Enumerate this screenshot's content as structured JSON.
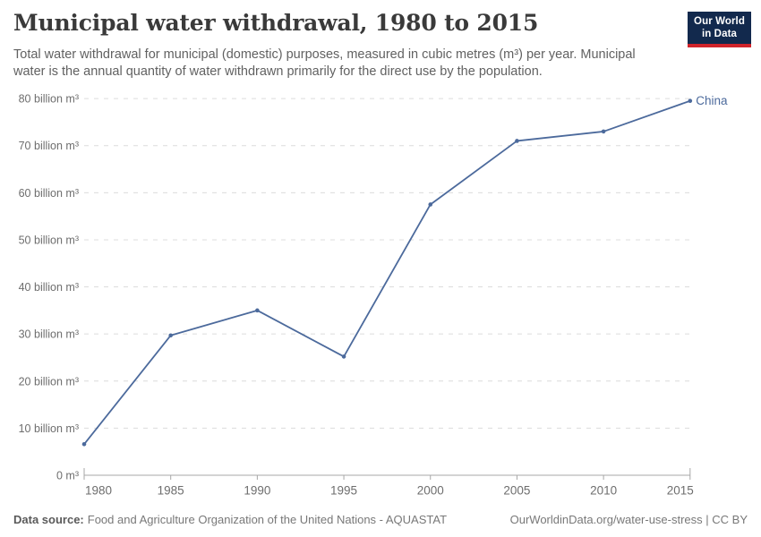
{
  "header": {
    "title": "Municipal water withdrawal, 1980 to 2015",
    "subtitle": "Total water withdrawal for municipal (domestic) purposes, measured in cubic metres (m³) per year. Municipal water is the annual quantity of water withdrawn primarily for the direct use by the population.",
    "logo": {
      "line1": "Our World",
      "line2": "in Data"
    }
  },
  "chart_data": {
    "type": "line",
    "title": "Municipal water withdrawal, 1980 to 2015",
    "unit": "billion m³",
    "x": [
      1980,
      1985,
      1990,
      1995,
      2000,
      2005,
      2010,
      2015
    ],
    "x_tick_labels": [
      "1980",
      "1985",
      "1990",
      "1995",
      "2000",
      "2005",
      "2010",
      "2015"
    ],
    "series": [
      {
        "name": "China",
        "values": [
          6.6,
          29.7,
          35.0,
          25.2,
          57.5,
          71.0,
          73.0,
          79.5
        ],
        "color": "#4c6a9c"
      }
    ],
    "xlim": [
      1980,
      2015
    ],
    "ylim": [
      0,
      80
    ],
    "y_ticks": [
      {
        "value": 0,
        "label": "0 m³"
      },
      {
        "value": 10,
        "label": "10 billion m³"
      },
      {
        "value": 20,
        "label": "20 billion m³"
      },
      {
        "value": 30,
        "label": "30 billion m³"
      },
      {
        "value": 40,
        "label": "40 billion m³"
      },
      {
        "value": 50,
        "label": "50 billion m³"
      },
      {
        "value": 60,
        "label": "60 billion m³"
      },
      {
        "value": 70,
        "label": "70 billion m³"
      },
      {
        "value": 80,
        "label": "80 billion m³"
      }
    ],
    "grid": "horizontal-dashed",
    "legend_position": "end-of-line"
  },
  "footer": {
    "source_label": "Data source:",
    "source_text": "Food and Agriculture Organization of the United Nations - AQUASTAT",
    "credit": "OurWorldinData.org/water-use-stress | CC BY"
  },
  "colors": {
    "line": "#4c6a9c",
    "grid": "#dcdcdc",
    "axis": "#a7a7a7",
    "tick_label": "#6e6e6e",
    "title": "#3a3a3a",
    "subtitle": "#616161",
    "footer": "#787878",
    "logo_bg": "#12294d",
    "logo_accent": "#d0232a"
  }
}
